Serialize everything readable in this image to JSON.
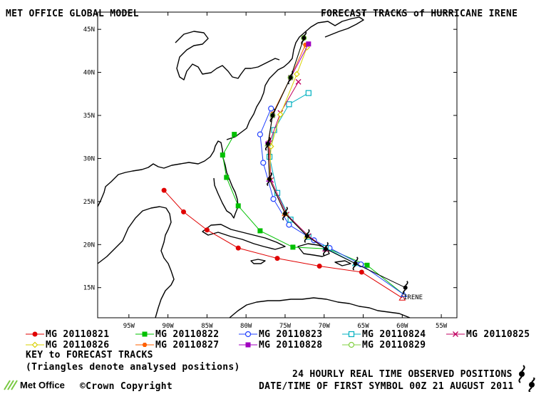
{
  "header": {
    "left_title": "MET OFFICE GLOBAL MODEL",
    "right_title": "FORECAST TRACKS of HURRICANE IRENE"
  },
  "axes": {
    "lon_labels": [
      "95W",
      "90W",
      "85W",
      "80W",
      "75W",
      "70W",
      "65W",
      "60W",
      "55W"
    ],
    "lat_labels": [
      "15N",
      "20N",
      "25N",
      "30N",
      "35N",
      "40N",
      "45N"
    ]
  },
  "storm_label": "IRENE",
  "legend": {
    "items": [
      {
        "label": "MG 20110821",
        "color": "#e00000",
        "marker": "filled-circle"
      },
      {
        "label": "MG 20110822",
        "color": "#00c000",
        "marker": "filled-square"
      },
      {
        "label": "MG 20110823",
        "color": "#2040ff",
        "marker": "open-circle"
      },
      {
        "label": "MG 20110824",
        "color": "#00b0c0",
        "marker": "open-square"
      },
      {
        "label": "MG 20110825",
        "color": "#c00060",
        "marker": "x"
      },
      {
        "label": "MG 20110826",
        "color": "#d8d000",
        "marker": "diamond"
      },
      {
        "label": "MG 20110827",
        "color": "#ff6000",
        "marker": "filled-hexagon"
      },
      {
        "label": "MG 20110828",
        "color": "#a000c0",
        "marker": "filled-square"
      },
      {
        "label": "MG 20110829",
        "color": "#80d040",
        "marker": "open-circle"
      }
    ],
    "key_title": "KEY to FORECAST TRACKS",
    "key_note": "(Triangles denote analysed positions)"
  },
  "footer": {
    "observed": "24 HOURLY REAL TIME OBSERVED POSITIONS",
    "copyright": "©Crown Copyright",
    "date_line": "DATE/TIME OF FIRST SYMBOL 00Z 21 AUGUST 2011",
    "logo_text": "Met Office"
  },
  "chart_data": {
    "type": "map",
    "lon_range": [
      -99,
      -53
    ],
    "lat_range": [
      11.5,
      47
    ],
    "observed_positions": [
      {
        "lon": -59.6,
        "lat": 15.0
      },
      {
        "lon": -66.0,
        "lat": 17.8
      },
      {
        "lon": -69.8,
        "lat": 19.5
      },
      {
        "lon": -72.2,
        "lat": 21.0
      },
      {
        "lon": -75.0,
        "lat": 23.6
      },
      {
        "lon": -77.0,
        "lat": 27.6
      },
      {
        "lon": -77.2,
        "lat": 31.7
      },
      {
        "lon": -76.6,
        "lat": 35.0
      },
      {
        "lon": -74.3,
        "lat": 39.4
      },
      {
        "lon": -72.6,
        "lat": 44.0
      }
    ],
    "series": [
      {
        "name": "MG 20110821",
        "points": [
          [
            -60.0,
            13.8
          ],
          [
            -65.2,
            16.8
          ],
          [
            -70.6,
            17.5
          ],
          [
            -76.0,
            18.4
          ],
          [
            -81.0,
            19.6
          ],
          [
            -85.0,
            21.7
          ],
          [
            -88.0,
            23.8
          ],
          [
            -90.5,
            26.3
          ]
        ]
      },
      {
        "name": "MG 20110822",
        "points": [
          [
            -59.8,
            14.2
          ],
          [
            -64.5,
            17.6
          ],
          [
            -69.4,
            19.5
          ],
          [
            -74.0,
            19.7
          ],
          [
            -78.2,
            21.6
          ],
          [
            -81.0,
            24.5
          ],
          [
            -82.5,
            27.8
          ],
          [
            -83.0,
            30.4
          ],
          [
            -81.5,
            32.8
          ]
        ]
      },
      {
        "name": "MG 20110823",
        "points": [
          [
            -59.8,
            14.2
          ],
          [
            -65.3,
            17.7
          ],
          [
            -69.3,
            19.6
          ],
          [
            -71.3,
            20.5
          ],
          [
            -74.5,
            22.3
          ],
          [
            -76.5,
            25.3
          ],
          [
            -77.8,
            29.5
          ],
          [
            -78.2,
            32.8
          ],
          [
            -76.8,
            35.8
          ]
        ]
      },
      {
        "name": "MG 20110824",
        "points": [
          [
            -66.0,
            17.8
          ],
          [
            -69.8,
            19.6
          ],
          [
            -72.0,
            20.9
          ],
          [
            -74.3,
            22.9
          ],
          [
            -76.0,
            26.0
          ],
          [
            -77.0,
            30.2
          ],
          [
            -76.4,
            33.3
          ],
          [
            -74.5,
            36.3
          ],
          [
            -72.0,
            37.6
          ]
        ]
      },
      {
        "name": "MG 20110825",
        "points": [
          [
            -69.8,
            19.5
          ],
          [
            -72.0,
            21.0
          ],
          [
            -74.8,
            23.5
          ],
          [
            -76.8,
            27.5
          ],
          [
            -77.0,
            31.8
          ],
          [
            -75.6,
            35.3
          ],
          [
            -73.3,
            38.9
          ]
        ]
      },
      {
        "name": "MG 20110826",
        "points": [
          [
            -72.2,
            21.0
          ],
          [
            -75.0,
            23.6
          ],
          [
            -77.0,
            27.6
          ],
          [
            -76.8,
            31.4
          ],
          [
            -75.6,
            35.1
          ],
          [
            -73.5,
            39.8
          ],
          [
            -72.2,
            42.9
          ]
        ]
      },
      {
        "name": "MG 20110827",
        "points": [
          [
            -75.0,
            23.6
          ],
          [
            -77.0,
            27.6
          ],
          [
            -77.1,
            31.8
          ],
          [
            -76.6,
            35.2
          ],
          [
            -74.3,
            39.4
          ],
          [
            -72.4,
            43.2
          ]
        ]
      },
      {
        "name": "MG 20110828",
        "points": [
          [
            -77.0,
            27.6
          ],
          [
            -77.2,
            31.7
          ],
          [
            -76.6,
            35.0
          ],
          [
            -74.3,
            39.4
          ],
          [
            -72.0,
            43.3
          ]
        ]
      },
      {
        "name": "MG 20110829",
        "points": [
          [
            -77.2,
            31.7
          ],
          [
            -76.6,
            35.0
          ],
          [
            -74.3,
            39.4
          ],
          [
            -72.6,
            44.0
          ]
        ]
      }
    ]
  }
}
